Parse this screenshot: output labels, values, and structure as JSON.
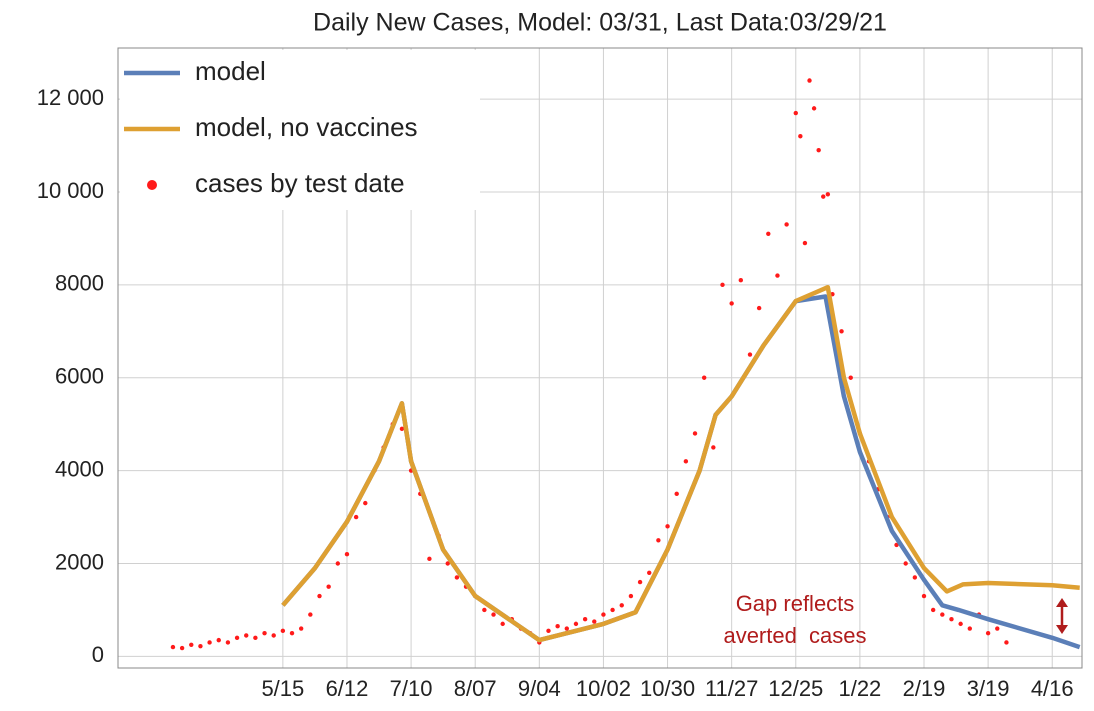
{
  "chart_data": {
    "type": "line",
    "title": "Daily New Cases, Model: 03/31, Last Data:03/29/21",
    "xlim": [
      -72,
      349
    ],
    "xticks": [
      {
        "value": 0,
        "label": "5/15"
      },
      {
        "value": 28,
        "label": "6/12"
      },
      {
        "value": 56,
        "label": "7/10"
      },
      {
        "value": 84,
        "label": "8/07"
      },
      {
        "value": 112,
        "label": "9/04"
      },
      {
        "value": 140,
        "label": "10/02"
      },
      {
        "value": 168,
        "label": "10/30"
      },
      {
        "value": 196,
        "label": "11/27"
      },
      {
        "value": 224,
        "label": "12/25"
      },
      {
        "value": 252,
        "label": "1/22"
      },
      {
        "value": 280,
        "label": "2/19"
      },
      {
        "value": 308,
        "label": "3/19"
      },
      {
        "value": 336,
        "label": "4/16"
      }
    ],
    "ylim": [
      -250,
      13100
    ],
    "yticks": [
      0,
      2000,
      4000,
      6000,
      8000,
      {
        "value": 10000,
        "label": "10 000"
      },
      {
        "value": 12000,
        "label": "12 000"
      }
    ],
    "grid": true,
    "legend": "upper left",
    "annotations": [
      "Gap reflects",
      "averted  cases"
    ],
    "annotation_color": "#b01c1c",
    "series": [
      {
        "name": "model",
        "type": "line",
        "color": "#5b7fb8",
        "x": [
          0,
          14,
          28,
          42,
          52,
          56,
          70,
          84,
          112,
          140,
          154,
          168,
          182,
          189,
          196,
          210,
          224,
          237,
          245,
          252,
          266,
          280,
          288,
          295,
          308,
          336,
          348
        ],
        "values": [
          1100,
          1900,
          2900,
          4200,
          5450,
          4200,
          2300,
          1300,
          350,
          700,
          950,
          2300,
          4000,
          5200,
          5600,
          6700,
          7650,
          7750,
          5600,
          4400,
          2700,
          1650,
          1100,
          1000,
          800,
          400,
          200
        ]
      },
      {
        "name": "model, no vaccines",
        "type": "line",
        "color": "#dea032",
        "x": [
          0,
          14,
          28,
          42,
          52,
          56,
          70,
          84,
          112,
          140,
          154,
          168,
          182,
          189,
          196,
          210,
          224,
          238,
          245,
          252,
          266,
          280,
          290,
          297,
          308,
          336,
          348
        ],
        "values": [
          1100,
          1900,
          2900,
          4200,
          5450,
          4200,
          2300,
          1300,
          350,
          700,
          950,
          2300,
          4000,
          5200,
          5600,
          6700,
          7650,
          7950,
          6000,
          4800,
          3000,
          1900,
          1400,
          1550,
          1580,
          1530,
          1480
        ]
      },
      {
        "name": "cases by test date",
        "type": "scatter",
        "color": "#ff1a1a",
        "x": [
          -48,
          -44,
          -40,
          -36,
          -32,
          -28,
          -24,
          -20,
          -16,
          -12,
          -8,
          -4,
          0,
          4,
          8,
          12,
          16,
          20,
          24,
          28,
          32,
          36,
          40,
          44,
          48,
          52,
          56,
          60,
          64,
          68,
          72,
          76,
          80,
          84,
          88,
          92,
          96,
          100,
          104,
          108,
          112,
          116,
          120,
          124,
          128,
          132,
          136,
          140,
          144,
          148,
          152,
          156,
          160,
          164,
          168,
          172,
          176,
          180,
          184,
          188,
          192,
          196,
          200,
          204,
          208,
          212,
          216,
          220,
          224,
          226,
          228,
          230,
          232,
          234,
          236,
          238,
          240,
          244,
          248,
          252,
          256,
          260,
          264,
          268,
          272,
          276,
          280,
          284,
          288,
          292,
          296,
          300,
          304,
          308,
          312,
          316
        ],
        "values": [
          200,
          180,
          250,
          220,
          300,
          350,
          300,
          400,
          450,
          400,
          500,
          450,
          550,
          500,
          600,
          900,
          1300,
          1500,
          2000,
          2200,
          3000,
          3300,
          4000,
          4500,
          5000,
          4900,
          4000,
          3500,
          2100,
          2600,
          2000,
          1700,
          1500,
          1300,
          1000,
          900,
          700,
          800,
          600,
          500,
          300,
          550,
          650,
          600,
          700,
          800,
          750,
          900,
          1000,
          1100,
          1300,
          1600,
          1800,
          2500,
          2800,
          3500,
          4200,
          4800,
          6000,
          4500,
          8000,
          7600,
          8100,
          6500,
          7500,
          9100,
          8200,
          9300,
          11700,
          11200,
          8900,
          12400,
          11800,
          10900,
          9900,
          9950,
          7800,
          7000,
          6000,
          4800,
          4200,
          3600,
          3000,
          2400,
          2000,
          1700,
          1300,
          1000,
          900,
          800,
          700,
          600,
          900,
          500,
          600,
          300
        ]
      }
    ]
  }
}
